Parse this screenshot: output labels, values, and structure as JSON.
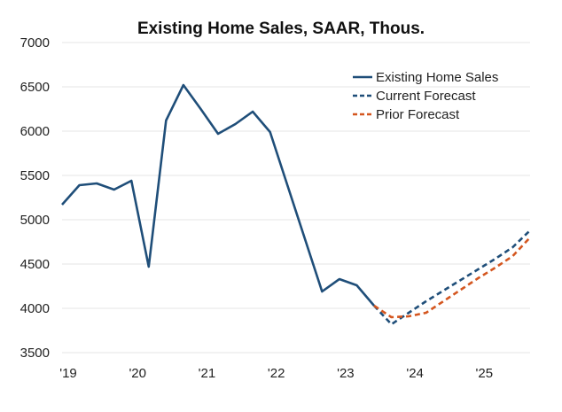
{
  "chart_data": {
    "type": "line",
    "title": "Existing Home Sales, SAAR, Thous.",
    "xlabel": "",
    "ylabel": "",
    "ylim": [
      3500,
      7000
    ],
    "xlim": [
      2019.0,
      2025.75
    ],
    "yticks": [
      3500,
      4000,
      4500,
      5000,
      5500,
      6000,
      6500,
      7000
    ],
    "xticks": [
      {
        "value": 2019,
        "label": "'19"
      },
      {
        "value": 2020,
        "label": "'20"
      },
      {
        "value": 2021,
        "label": "'21"
      },
      {
        "value": 2022,
        "label": "'22"
      },
      {
        "value": 2023,
        "label": "'23"
      },
      {
        "value": 2024,
        "label": "'24"
      },
      {
        "value": 2025,
        "label": "'25"
      }
    ],
    "grid": true,
    "legend_position": "top-right",
    "series": [
      {
        "name": "Existing Home Sales",
        "style": "solid",
        "color": "#1f4e79",
        "x": [
          2019.0,
          2019.25,
          2019.5,
          2019.75,
          2020.0,
          2020.25,
          2020.5,
          2020.75,
          2021.0,
          2021.25,
          2021.5,
          2021.75,
          2022.0,
          2022.25,
          2022.5,
          2022.75,
          2023.0,
          2023.25,
          2023.5
        ],
        "values": [
          5170,
          5390,
          5410,
          5340,
          5440,
          4470,
          6120,
          6520,
          6250,
          5970,
          6080,
          6220,
          5990,
          5390,
          4790,
          4190,
          4330,
          4260,
          4030
        ]
      },
      {
        "name": "Current Forecast",
        "style": "dashed",
        "color": "#1f4e79",
        "x": [
          2023.5,
          2023.75,
          2024.0,
          2024.25,
          2024.5,
          2024.75,
          2025.0,
          2025.25,
          2025.5,
          2025.75
        ],
        "values": [
          4030,
          3820,
          3950,
          4080,
          4200,
          4320,
          4440,
          4560,
          4690,
          4880
        ]
      },
      {
        "name": "Prior Forecast",
        "style": "dashed",
        "color": "#d4561f",
        "x": [
          2023.5,
          2023.75,
          2024.0,
          2024.25,
          2024.5,
          2024.75,
          2025.0,
          2025.25,
          2025.5,
          2025.75
        ],
        "values": [
          4030,
          3900,
          3910,
          3950,
          4080,
          4210,
          4340,
          4460,
          4590,
          4800
        ]
      }
    ]
  }
}
